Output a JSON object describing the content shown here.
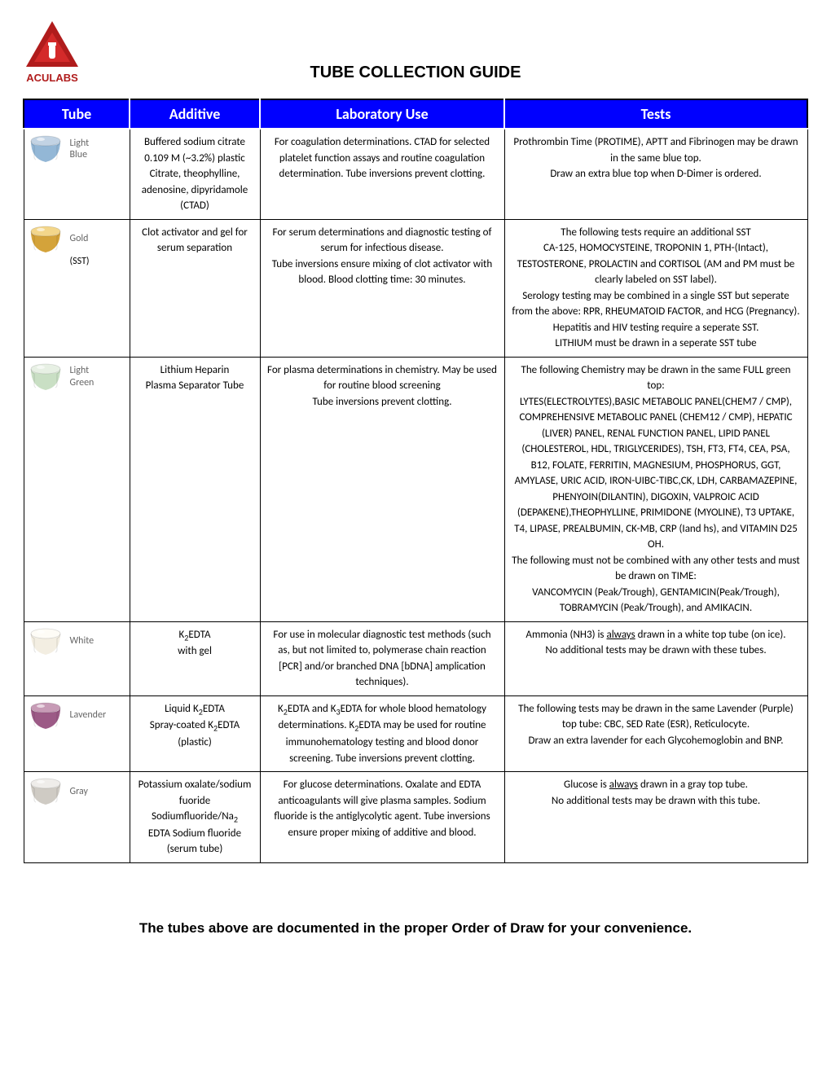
{
  "brand": "ACULABS",
  "title": "TUBE COLLECTION GUIDE",
  "columns": [
    "Tube",
    "Additive",
    "Laboratory Use",
    "Tests"
  ],
  "footer": "The tubes above are documented in the proper Order of Draw for your convenience.",
  "rows": [
    {
      "tube_label": "Light\nBlue",
      "tube_extra": "",
      "cap_top": "#c2d3e4",
      "cap_body": "#93b7d6",
      "additive_html": "Buffered sodium citrate 0.109 M (~3.2%) plastic Citrate, theophylline, adenosine, dipyridamole (CTAD)",
      "lab_html": "For coagulation determinations. CTAD for selected platelet function assays and routine coagulation determination. Tube inversions prevent clotting.",
      "tests_html": "Prothrombin Time (PROTIME), APTT and Fibrinogen may be drawn in the same blue top.<br>Draw an extra blue top when D-Dimer is ordered."
    },
    {
      "tube_label": "Gold",
      "tube_extra": "(SST)",
      "cap_top": "#f3d68a",
      "cap_body": "#d4a33a",
      "additive_html": "Clot activator and gel for serum separation",
      "lab_html": "For serum determinations and diagnostic testing of serum for infectious disease.<br>Tube inversions ensure mixing of clot activator with blood. Blood clotting time: 30 minutes.",
      "tests_html": "The following tests require an additional SST<br>CA-125, HOMOCYSTEINE, TROPONIN 1, PTH-(Intact), TESTOSTERONE, PROLACTIN and CORTISOL (AM and PM must be clearly labeled on SST label).<br>Serology testing may be combined in a single SST but seperate from the above: RPR, RHEUMATOID FACTOR, and HCG (Pregnancy).<br>Hepatitis and HIV testing require a seperate SST.<br>LITHIUM must be drawn in a seperate SST tube"
    },
    {
      "tube_label": "Light\nGreen",
      "tube_extra": "",
      "cap_top": "#e7f0e4",
      "cap_body": "#c9dfc4",
      "additive_html": "Lithium Heparin<br>Plasma Separator Tube",
      "lab_html": "For plasma determinations in chemistry. May be used for routine blood screening<br>Tube inversions prevent clotting.",
      "tests_html": "The following Chemistry may be drawn in the same FULL green top:<br>LYTES(ELECTROLYTES),BASIC METABOLIC PANEL(CHEM7 / CMP), COMPREHENSIVE METABOLIC PANEL (CHEM12 / CMP), HEPATIC (LIVER) PANEL, RENAL FUNCTION PANEL, LIPID PANEL (CHOLESTEROL, HDL, TRIGLYCERIDES), TSH, FT3, FT4, CEA, PSA, B12, FOLATE, FERRITIN, MAGNESIUM, PHOSPHORUS, GGT, AMYLASE, URIC ACID, IRON-UIBC-TIBC,CK, LDH, CARBAMAZEPINE, PHENYOIN(DILANTIN), DIGOXIN, VALPROIC ACID (DEPAKENE),THEOPHYLLINE, PRIMIDONE (MYOLINE), T3 UPTAKE, T4, LIPASE, PREALBUMIN, CK-MB, CRP (Iand hs), and VITAMIN D25 OH.<br>The following must not be combined with any other tests and must be drawn on TIME:<br>VANCOMYCIN (Peak/Trough), GENTAMICIN(Peak/Trough), TOBRAMYCIN (Peak/Trough), and AMIKACIN."
    },
    {
      "tube_label": "White",
      "tube_extra": "",
      "cap_top": "#fefcf6",
      "cap_body": "#f3eee2",
      "additive_html": "K<span class=\"sub\">2</span>EDTA<br>with gel",
      "lab_html": "For use in molecular diagnostic test methods (such as, but not limited to, polymerase chain reaction [PCR] and/or branched DNA [bDNA] amplication techniques).",
      "tests_html": "Ammonia (NH3) is <span class=\"ul\">always</span> drawn in a white top tube (on ice).<br>No additional tests may be drawn with these tubes."
    },
    {
      "tube_label": "Lavender",
      "tube_extra": "",
      "cap_top": "#c79bb6",
      "cap_body": "#9c5a86",
      "additive_html": "Liquid K<span class=\"sub\">2</span>EDTA<br>Spray-coated K<span class=\"sub\">2</span>EDTA (plastic)",
      "lab_html": "K<span class=\"sub\">2</span>EDTA and K<span class=\"sub\">3</span>EDTA for whole blood hematology determinations. K<span class=\"sub\">2</span>EDTA may be used for routine immunohematology testing and blood donor screening. Tube inversions prevent clotting.",
      "tests_html": "The following tests may be drawn in the same Lavender (Purple) top tube: CBC, SED Rate (ESR), Reticulocyte.<br>Draw an extra lavender for each Glycohemoglobin and BNP."
    },
    {
      "tube_label": "Gray",
      "tube_extra": "",
      "cap_top": "#efedea",
      "cap_body": "#cfcbc4",
      "additive_html": "Potassium oxalate/sodium fuoride<br>Sodiumfluoride/Na<span class=\"sub\">2</span><br>EDTA Sodium fluoride (serum tube)",
      "lab_html": "For glucose determinations. Oxalate and EDTA anticoagulants will give plasma samples. Sodium fluoride is the antiglycolytic agent. Tube inversions ensure proper mixing of additive and blood.",
      "tests_html": "Glucose is <span class=\"ul\">always</span> drawn in a gray top tube.<br>No additional tests may be drawn with this tube."
    }
  ]
}
